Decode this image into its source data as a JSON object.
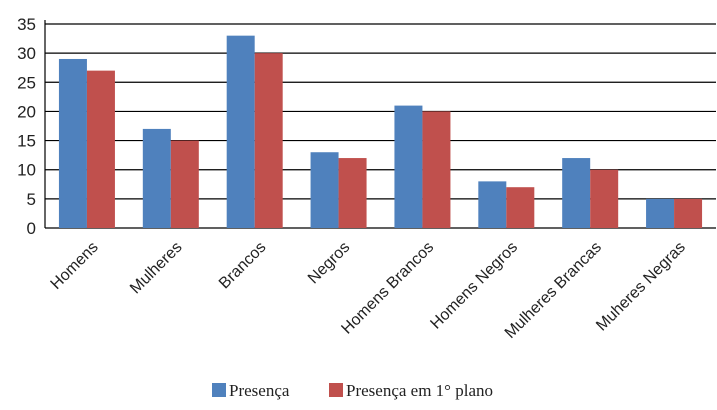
{
  "chart_data": {
    "type": "bar",
    "categories": [
      "Homens",
      "Mulheres",
      "Brancos",
      "Negros",
      "Homens Brancos",
      "Homens Negros",
      "Mulheres Brancas",
      "Muheres Negras"
    ],
    "series": [
      {
        "name": "Presença",
        "values": [
          29,
          17,
          33,
          13,
          21,
          8,
          12,
          5
        ],
        "color": "#4F81BD"
      },
      {
        "name": "Presença em 1°  plano",
        "values": [
          27,
          15,
          30,
          12,
          20,
          7,
          10,
          5
        ],
        "color": "#C0504D"
      }
    ],
    "ylim": [
      0,
      35
    ],
    "yticks": [
      0,
      5,
      10,
      15,
      20,
      25,
      30,
      35
    ],
    "grid": true,
    "legend_position": "bottom-center",
    "title": "",
    "xlabel": "",
    "ylabel": ""
  }
}
